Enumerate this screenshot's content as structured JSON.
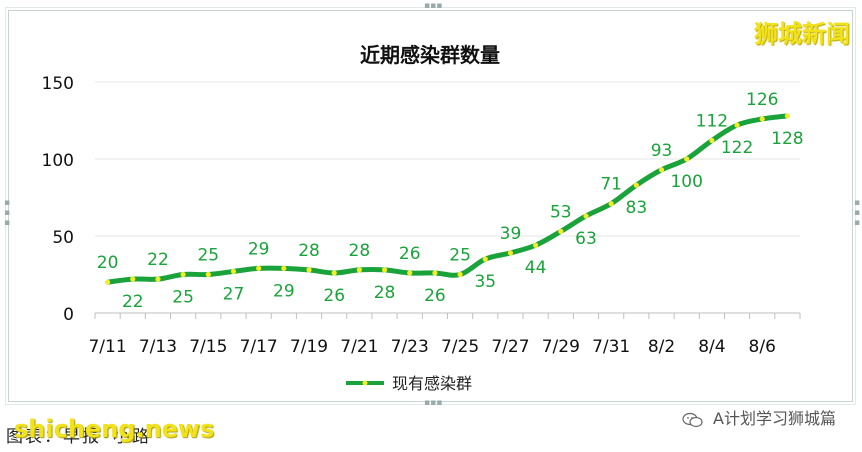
{
  "brand": "狮城新闻",
  "caption": "图表：早报•小路",
  "site": "shicheng.news",
  "wechat_label": "A计划学习狮城篇",
  "chart_data": {
    "type": "line",
    "title": "近期感染群数量",
    "xlabel": "",
    "ylabel": "",
    "ylim": [
      0,
      150
    ],
    "yticks": [
      0,
      50,
      100,
      150
    ],
    "x": [
      "7/11",
      "7/12",
      "7/13",
      "7/14",
      "7/15",
      "7/16",
      "7/17",
      "7/18",
      "7/19",
      "7/20",
      "7/21",
      "7/22",
      "7/23",
      "7/24",
      "7/25",
      "7/26",
      "7/27",
      "7/28",
      "7/29",
      "7/30",
      "7/31",
      "8/1",
      "8/2",
      "8/3",
      "8/4",
      "8/5",
      "8/6",
      "8/7"
    ],
    "xtick_labels": [
      "7/11",
      "7/13",
      "7/15",
      "7/17",
      "7/19",
      "7/21",
      "7/23",
      "7/25",
      "7/27",
      "7/29",
      "7/31",
      "8/2",
      "8/4",
      "8/6"
    ],
    "series": [
      {
        "name": "现有感染群",
        "color": "#1aa33a",
        "marker_color": "#f4ec2a",
        "values": [
          20,
          22,
          22,
          25,
          25,
          27,
          29,
          29,
          28,
          26,
          28,
          28,
          26,
          26,
          25,
          35,
          39,
          44,
          53,
          63,
          71,
          83,
          93,
          100,
          112,
          122,
          126,
          128
        ]
      }
    ],
    "grid": true,
    "legend": "bottom"
  }
}
